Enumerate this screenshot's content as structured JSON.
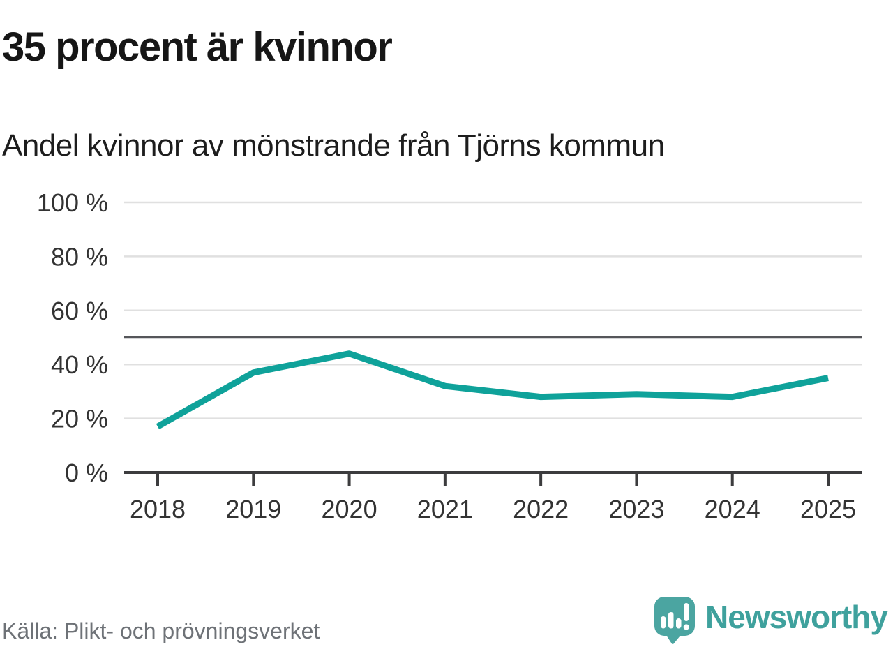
{
  "header": {
    "title": "35 procent är kvinnor",
    "subtitle": "Andel kvinnor av mönstrande från Tjörns kommun"
  },
  "chart_data": {
    "type": "line",
    "title": "35 procent är kvinnor",
    "subtitle": "Andel kvinnor av mönstrande från Tjörns kommun",
    "categories": [
      "2018",
      "2019",
      "2020",
      "2021",
      "2022",
      "2023",
      "2024",
      "2025"
    ],
    "series": [
      {
        "name": "Andel kvinnor av mönstrande",
        "values": [
          17,
          37,
          44,
          32,
          28,
          29,
          28,
          35
        ]
      }
    ],
    "xlabel": "",
    "ylabel": "",
    "ylim": [
      0,
      100
    ],
    "yticks": [
      0,
      20,
      40,
      60,
      80,
      100
    ],
    "ytick_suffix": " %",
    "reference_line": 50,
    "grid": true,
    "legend_position": "none",
    "colors": {
      "line": "#0fa29a",
      "axis": "#3c3c3e",
      "grid": "#e0e0e0",
      "reference": "#55565a",
      "tick_label": "#333333"
    }
  },
  "footer": {
    "source": "Källa: Plikt- och prövningsverket",
    "brand": "Newsworthy"
  },
  "icons": {
    "logo": "newsworthy-speech-bubble-bar-chart"
  }
}
